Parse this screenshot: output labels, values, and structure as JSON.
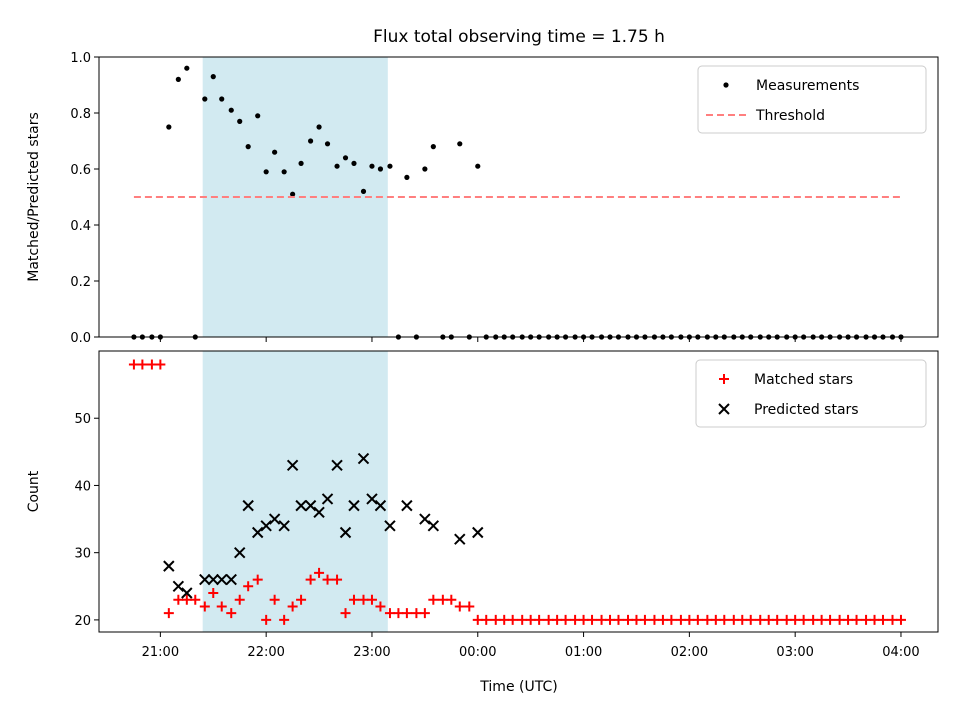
{
  "chart_data": [
    {
      "type": "scatter",
      "title": "Flux total observing time = 1.75 h",
      "xlabel": "",
      "ylabel": "Matched/Predicted stars",
      "xlim": [
        20.42,
        28.35
      ],
      "ylim": [
        0,
        1.0
      ],
      "yticks": [
        0.0,
        0.2,
        0.4,
        0.6,
        0.8,
        1.0
      ],
      "ytick_labels": [
        "0.0",
        "0.2",
        "0.4",
        "0.6",
        "0.8",
        "1.0"
      ],
      "legend_position": "top-right",
      "shaded_span": [
        21.4,
        23.15
      ],
      "shade_color": "#add8e6",
      "series": [
        {
          "name": "Measurements",
          "marker": "dot",
          "color": "#000000",
          "x": [
            20.75,
            20.83,
            20.92,
            21.0,
            21.08,
            21.17,
            21.25,
            21.33,
            21.42,
            21.5,
            21.58,
            21.67,
            21.75,
            21.83,
            21.92,
            22.0,
            22.08,
            22.17,
            22.25,
            22.33,
            22.42,
            22.5,
            22.58,
            22.67,
            22.75,
            22.83,
            22.92,
            23.0,
            23.08,
            23.17,
            23.25,
            23.33,
            23.42,
            23.5,
            23.58,
            23.67,
            23.75,
            23.83,
            23.92,
            24.0,
            24.08,
            24.17,
            24.25,
            24.33,
            24.42,
            24.5,
            24.58,
            24.67,
            24.75,
            24.83,
            24.92,
            25.0,
            25.08,
            25.17,
            25.25,
            25.33,
            25.42,
            25.5,
            25.58,
            25.67,
            25.75,
            25.83,
            25.92,
            26.0,
            26.08,
            26.17,
            26.25,
            26.33,
            26.42,
            26.5,
            26.58,
            26.67,
            26.75,
            26.83,
            26.92,
            27.0,
            27.08,
            27.17,
            27.25,
            27.33,
            27.42,
            27.5,
            27.58,
            27.67,
            27.75,
            27.83,
            27.92,
            28.0
          ],
          "y": [
            0,
            0,
            0,
            0,
            0.75,
            0.92,
            0.96,
            0,
            0.85,
            0.93,
            0.85,
            0.81,
            0.77,
            0.68,
            0.79,
            0.59,
            0.66,
            0.59,
            0.51,
            0.62,
            0.7,
            0.75,
            0.69,
            0.61,
            0.64,
            0.62,
            0.52,
            0.61,
            0.6,
            0.61,
            0,
            0.57,
            0,
            0.6,
            0.68,
            0,
            0,
            0.69,
            0,
            0.61,
            0,
            0,
            0,
            0,
            0,
            0,
            0,
            0,
            0,
            0,
            0,
            0,
            0,
            0,
            0,
            0,
            0,
            0,
            0,
            0,
            0,
            0,
            0,
            0,
            0,
            0,
            0,
            0,
            0,
            0,
            0,
            0,
            0,
            0,
            0,
            0,
            0,
            0,
            0,
            0,
            0,
            0,
            0,
            0,
            0,
            0,
            0,
            0
          ]
        },
        {
          "name": "Threshold",
          "marker": "dashed-line",
          "color": "#ff7f7f",
          "x": [
            20.75,
            28.0
          ],
          "y": [
            0.5,
            0.5
          ]
        }
      ]
    },
    {
      "type": "scatter",
      "title": "",
      "xlabel": "Time (UTC)",
      "ylabel": "Count",
      "xlim": [
        20.42,
        28.35
      ],
      "ylim": [
        18.2,
        60.0
      ],
      "yticks": [
        20,
        30,
        40,
        50
      ],
      "ytick_labels": [
        "20",
        "30",
        "40",
        "50"
      ],
      "xticks": [
        21,
        22,
        23,
        24,
        25,
        26,
        27,
        28
      ],
      "xtick_labels": [
        "21:00",
        "22:00",
        "23:00",
        "00:00",
        "01:00",
        "02:00",
        "03:00",
        "04:00"
      ],
      "legend_position": "top-right",
      "shaded_span": [
        21.4,
        23.15
      ],
      "shade_color": "#add8e6",
      "series": [
        {
          "name": "Matched stars",
          "marker": "plus",
          "color": "#ff0000",
          "x": [
            20.75,
            20.83,
            20.92,
            21.0,
            21.08,
            21.17,
            21.25,
            21.33,
            21.42,
            21.5,
            21.58,
            21.67,
            21.75,
            21.83,
            21.92,
            22.0,
            22.08,
            22.17,
            22.25,
            22.33,
            22.42,
            22.5,
            22.58,
            22.67,
            22.75,
            22.83,
            22.92,
            23.0,
            23.08,
            23.17,
            23.25,
            23.33,
            23.42,
            23.5,
            23.58,
            23.67,
            23.75,
            23.83,
            23.92,
            24.0,
            24.08,
            24.17,
            24.25,
            24.33,
            24.42,
            24.5,
            24.58,
            24.67,
            24.75,
            24.83,
            24.92,
            25.0,
            25.08,
            25.17,
            25.25,
            25.33,
            25.42,
            25.5,
            25.58,
            25.67,
            25.75,
            25.83,
            25.92,
            26.0,
            26.08,
            26.17,
            26.25,
            26.33,
            26.42,
            26.5,
            26.58,
            26.67,
            26.75,
            26.83,
            26.92,
            27.0,
            27.08,
            27.17,
            27.25,
            27.33,
            27.42,
            27.5,
            27.58,
            27.67,
            27.75,
            27.83,
            27.92,
            28.0
          ],
          "y": [
            58,
            58,
            58,
            58,
            21,
            23,
            23,
            23,
            22,
            24,
            22,
            21,
            23,
            25,
            26,
            20,
            23,
            20,
            22,
            23,
            26,
            27,
            26,
            26,
            21,
            23,
            23,
            23,
            22,
            21,
            21,
            21,
            21,
            21,
            23,
            23,
            23,
            22,
            22,
            20,
            20,
            20,
            20,
            20,
            20,
            20,
            20,
            20,
            20,
            20,
            20,
            20,
            20,
            20,
            20,
            20,
            20,
            20,
            20,
            20,
            20,
            20,
            20,
            20,
            20,
            20,
            20,
            20,
            20,
            20,
            20,
            20,
            20,
            20,
            20,
            20,
            20,
            20,
            20,
            20,
            20,
            20,
            20,
            20,
            20,
            20,
            20,
            20
          ]
        },
        {
          "name": "Predicted stars",
          "marker": "x",
          "color": "#000000",
          "x": [
            21.08,
            21.17,
            21.25,
            21.42,
            21.5,
            21.58,
            21.67,
            21.75,
            21.83,
            21.92,
            22.0,
            22.08,
            22.17,
            22.25,
            22.33,
            22.42,
            22.5,
            22.58,
            22.67,
            22.75,
            22.83,
            22.92,
            23.0,
            23.08,
            23.17,
            23.33,
            23.5,
            23.58,
            23.83,
            24.0
          ],
          "y": [
            28,
            25,
            24,
            26,
            26,
            26,
            26,
            30,
            37,
            33,
            34,
            35,
            34,
            43,
            37,
            37,
            36,
            38,
            43,
            33,
            37,
            44,
            38,
            37,
            34,
            37,
            35,
            34,
            32,
            33
          ]
        }
      ]
    }
  ]
}
